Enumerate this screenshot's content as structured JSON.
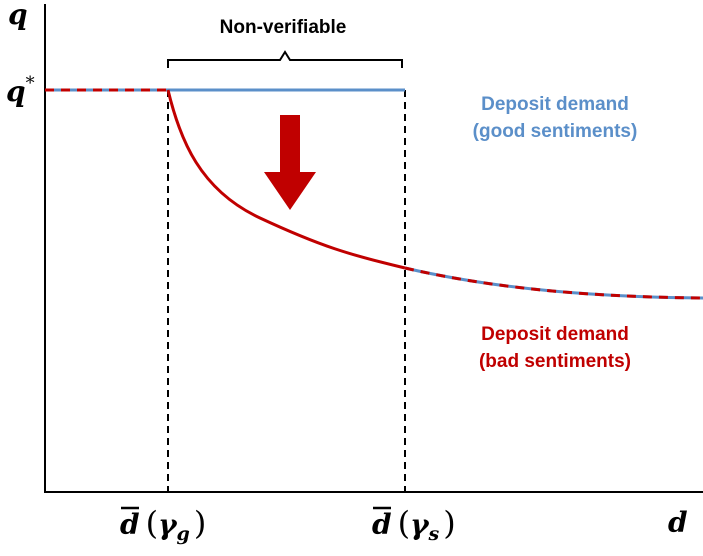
{
  "axes": {
    "y_label": "q",
    "x_label": "d"
  },
  "level_label": {
    "symbol": "q",
    "superscript": "*"
  },
  "bracket_label": "Non-verifiable",
  "curves": [
    {
      "name": "good",
      "lines": [
        "Deposit demand",
        "(good sentiments)"
      ]
    },
    {
      "name": "bad",
      "lines": [
        "Deposit demand",
        "(bad sentiments)"
      ]
    }
  ],
  "x_markers": [
    {
      "base": "d",
      "open": "(",
      "argument": "γ",
      "subscript": "g",
      "close": ")"
    },
    {
      "base": "d",
      "open": "(",
      "argument": "γ",
      "subscript": "s",
      "close": ")"
    }
  ]
}
